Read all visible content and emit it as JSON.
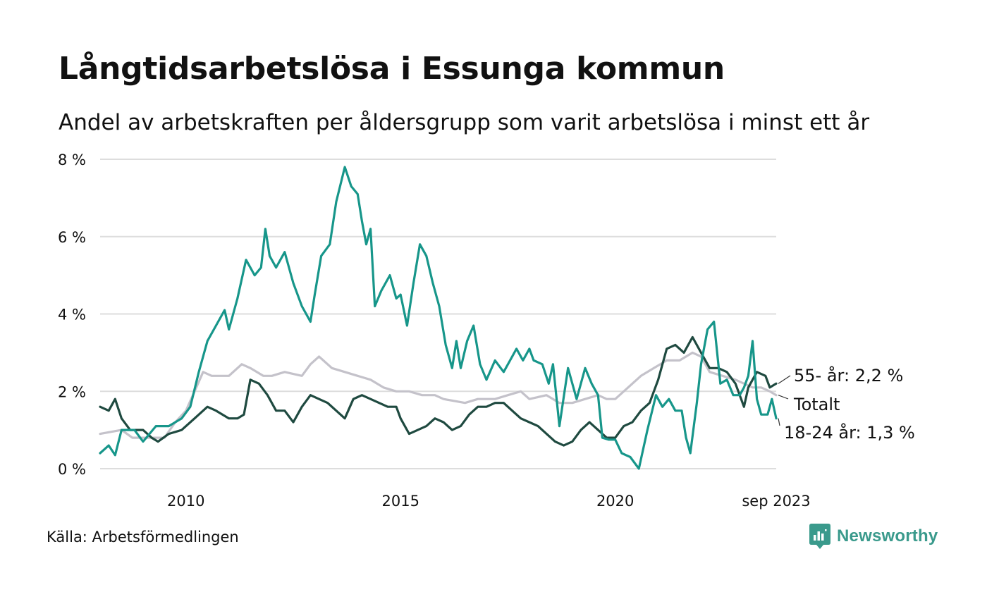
{
  "header": {
    "title": "Långtidsarbetslösa i Essunga kommun",
    "subtitle": "Andel av arbetskraften per åldersgrupp som varit arbetslösa i minst ett år"
  },
  "footer": {
    "source": "Källa: Arbetsförmedlingen",
    "brand": "Newsworthy"
  },
  "colors": {
    "age_18_24": "#17968a",
    "age_55": "#1f4a40",
    "total": "#c4c2ca",
    "grid": "#dddddd"
  },
  "chart_data": {
    "type": "line",
    "title": "Långtidsarbetslösa i Essunga kommun",
    "ylabel": "",
    "xlabel": "",
    "ylim": [
      0,
      8
    ],
    "y_ticks": [
      "0 %",
      "2 %",
      "4 %",
      "6 %",
      "8 %"
    ],
    "x_range": [
      2008,
      2023.75
    ],
    "x_ticks": [
      {
        "x": 2010,
        "label": "2010"
      },
      {
        "x": 2015,
        "label": "2015"
      },
      {
        "x": 2020,
        "label": "2020"
      },
      {
        "x": 2023.75,
        "label": "sep 2023"
      }
    ],
    "grid": true,
    "series": [
      {
        "name": "Totalt",
        "end_label": "Totalt",
        "points": [
          [
            2008.0,
            0.9
          ],
          [
            2008.5,
            1.0
          ],
          [
            2008.75,
            0.8
          ],
          [
            2009.0,
            0.8
          ],
          [
            2009.5,
            0.8
          ],
          [
            2009.75,
            1.2
          ],
          [
            2010.0,
            1.5
          ],
          [
            2010.2,
            2.0
          ],
          [
            2010.4,
            2.5
          ],
          [
            2010.6,
            2.4
          ],
          [
            2011.0,
            2.4
          ],
          [
            2011.3,
            2.7
          ],
          [
            2011.5,
            2.6
          ],
          [
            2011.8,
            2.4
          ],
          [
            2012.0,
            2.4
          ],
          [
            2012.3,
            2.5
          ],
          [
            2012.7,
            2.4
          ],
          [
            2012.9,
            2.7
          ],
          [
            2013.1,
            2.9
          ],
          [
            2013.4,
            2.6
          ],
          [
            2013.7,
            2.5
          ],
          [
            2014.0,
            2.4
          ],
          [
            2014.3,
            2.3
          ],
          [
            2014.6,
            2.1
          ],
          [
            2014.9,
            2.0
          ],
          [
            2015.2,
            2.0
          ],
          [
            2015.5,
            1.9
          ],
          [
            2015.8,
            1.9
          ],
          [
            2016.0,
            1.8
          ],
          [
            2016.5,
            1.7
          ],
          [
            2016.8,
            1.8
          ],
          [
            2017.2,
            1.8
          ],
          [
            2017.5,
            1.9
          ],
          [
            2017.8,
            2.0
          ],
          [
            2018.0,
            1.8
          ],
          [
            2018.4,
            1.9
          ],
          [
            2018.7,
            1.7
          ],
          [
            2019.0,
            1.7
          ],
          [
            2019.3,
            1.8
          ],
          [
            2019.6,
            1.9
          ],
          [
            2019.8,
            1.8
          ],
          [
            2020.0,
            1.8
          ],
          [
            2020.3,
            2.1
          ],
          [
            2020.6,
            2.4
          ],
          [
            2020.9,
            2.6
          ],
          [
            2021.2,
            2.8
          ],
          [
            2021.5,
            2.8
          ],
          [
            2021.8,
            3.0
          ],
          [
            2022.0,
            2.9
          ],
          [
            2022.2,
            2.5
          ],
          [
            2022.5,
            2.4
          ],
          [
            2022.8,
            2.3
          ],
          [
            2023.0,
            2.2
          ],
          [
            2023.2,
            2.1
          ],
          [
            2023.4,
            2.1
          ],
          [
            2023.6,
            2.0
          ],
          [
            2023.75,
            1.9
          ]
        ]
      },
      {
        "name": "55- år",
        "end_label": "55- år: 2,2 %",
        "points": [
          [
            2008.0,
            1.6
          ],
          [
            2008.2,
            1.5
          ],
          [
            2008.35,
            1.8
          ],
          [
            2008.5,
            1.3
          ],
          [
            2008.7,
            1.0
          ],
          [
            2009.0,
            1.0
          ],
          [
            2009.2,
            0.8
          ],
          [
            2009.35,
            0.7
          ],
          [
            2009.6,
            0.9
          ],
          [
            2009.9,
            1.0
          ],
          [
            2010.2,
            1.3
          ],
          [
            2010.5,
            1.6
          ],
          [
            2010.7,
            1.5
          ],
          [
            2011.0,
            1.3
          ],
          [
            2011.2,
            1.3
          ],
          [
            2011.35,
            1.4
          ],
          [
            2011.5,
            2.3
          ],
          [
            2011.7,
            2.2
          ],
          [
            2011.9,
            1.9
          ],
          [
            2012.1,
            1.5
          ],
          [
            2012.3,
            1.5
          ],
          [
            2012.5,
            1.2
          ],
          [
            2012.7,
            1.6
          ],
          [
            2012.9,
            1.9
          ],
          [
            2013.1,
            1.8
          ],
          [
            2013.3,
            1.7
          ],
          [
            2013.5,
            1.5
          ],
          [
            2013.7,
            1.3
          ],
          [
            2013.9,
            1.8
          ],
          [
            2014.1,
            1.9
          ],
          [
            2014.3,
            1.8
          ],
          [
            2014.5,
            1.7
          ],
          [
            2014.7,
            1.6
          ],
          [
            2014.9,
            1.6
          ],
          [
            2015.0,
            1.3
          ],
          [
            2015.2,
            0.9
          ],
          [
            2015.4,
            1.0
          ],
          [
            2015.6,
            1.1
          ],
          [
            2015.8,
            1.3
          ],
          [
            2016.0,
            1.2
          ],
          [
            2016.2,
            1.0
          ],
          [
            2016.4,
            1.1
          ],
          [
            2016.6,
            1.4
          ],
          [
            2016.8,
            1.6
          ],
          [
            2017.0,
            1.6
          ],
          [
            2017.2,
            1.7
          ],
          [
            2017.4,
            1.7
          ],
          [
            2017.6,
            1.5
          ],
          [
            2017.8,
            1.3
          ],
          [
            2018.0,
            1.2
          ],
          [
            2018.2,
            1.1
          ],
          [
            2018.4,
            0.9
          ],
          [
            2018.6,
            0.7
          ],
          [
            2018.8,
            0.6
          ],
          [
            2019.0,
            0.7
          ],
          [
            2019.2,
            1.0
          ],
          [
            2019.4,
            1.2
          ],
          [
            2019.6,
            1.0
          ],
          [
            2019.8,
            0.8
          ],
          [
            2020.0,
            0.8
          ],
          [
            2020.2,
            1.1
          ],
          [
            2020.4,
            1.2
          ],
          [
            2020.6,
            1.5
          ],
          [
            2020.8,
            1.7
          ],
          [
            2021.0,
            2.3
          ],
          [
            2021.2,
            3.1
          ],
          [
            2021.4,
            3.2
          ],
          [
            2021.6,
            3.0
          ],
          [
            2021.8,
            3.4
          ],
          [
            2022.0,
            3.0
          ],
          [
            2022.2,
            2.6
          ],
          [
            2022.4,
            2.6
          ],
          [
            2022.6,
            2.5
          ],
          [
            2022.8,
            2.2
          ],
          [
            2023.0,
            1.6
          ],
          [
            2023.1,
            2.1
          ],
          [
            2023.3,
            2.5
          ],
          [
            2023.5,
            2.4
          ],
          [
            2023.6,
            2.1
          ],
          [
            2023.75,
            2.2
          ]
        ]
      },
      {
        "name": "18-24 år",
        "end_label": "18-24 år: 1,3 %",
        "points": [
          [
            2008.0,
            0.4
          ],
          [
            2008.2,
            0.6
          ],
          [
            2008.35,
            0.35
          ],
          [
            2008.5,
            1.0
          ],
          [
            2008.8,
            1.0
          ],
          [
            2009.0,
            0.7
          ],
          [
            2009.3,
            1.1
          ],
          [
            2009.6,
            1.1
          ],
          [
            2009.9,
            1.3
          ],
          [
            2010.1,
            1.6
          ],
          [
            2010.3,
            2.5
          ],
          [
            2010.5,
            3.3
          ],
          [
            2010.7,
            3.7
          ],
          [
            2010.9,
            4.1
          ],
          [
            2011.0,
            3.6
          ],
          [
            2011.2,
            4.4
          ],
          [
            2011.4,
            5.4
          ],
          [
            2011.6,
            5.0
          ],
          [
            2011.75,
            5.2
          ],
          [
            2011.85,
            6.2
          ],
          [
            2011.95,
            5.5
          ],
          [
            2012.1,
            5.2
          ],
          [
            2012.3,
            5.6
          ],
          [
            2012.5,
            4.8
          ],
          [
            2012.7,
            4.2
          ],
          [
            2012.9,
            3.8
          ],
          [
            2013.0,
            4.5
          ],
          [
            2013.15,
            5.5
          ],
          [
            2013.35,
            5.8
          ],
          [
            2013.5,
            6.9
          ],
          [
            2013.7,
            7.8
          ],
          [
            2013.85,
            7.3
          ],
          [
            2014.0,
            7.1
          ],
          [
            2014.1,
            6.4
          ],
          [
            2014.2,
            5.8
          ],
          [
            2014.3,
            6.2
          ],
          [
            2014.4,
            4.2
          ],
          [
            2014.55,
            4.6
          ],
          [
            2014.75,
            5.0
          ],
          [
            2014.9,
            4.4
          ],
          [
            2015.0,
            4.5
          ],
          [
            2015.15,
            3.7
          ],
          [
            2015.3,
            4.8
          ],
          [
            2015.45,
            5.8
          ],
          [
            2015.6,
            5.5
          ],
          [
            2015.75,
            4.8
          ],
          [
            2015.9,
            4.2
          ],
          [
            2016.05,
            3.2
          ],
          [
            2016.2,
            2.6
          ],
          [
            2016.3,
            3.3
          ],
          [
            2016.4,
            2.6
          ],
          [
            2016.55,
            3.3
          ],
          [
            2016.7,
            3.7
          ],
          [
            2016.85,
            2.7
          ],
          [
            2017.0,
            2.3
          ],
          [
            2017.2,
            2.8
          ],
          [
            2017.4,
            2.5
          ],
          [
            2017.55,
            2.8
          ],
          [
            2017.7,
            3.1
          ],
          [
            2017.85,
            2.8
          ],
          [
            2018.0,
            3.1
          ],
          [
            2018.1,
            2.8
          ],
          [
            2018.3,
            2.7
          ],
          [
            2018.45,
            2.2
          ],
          [
            2018.55,
            2.7
          ],
          [
            2018.7,
            1.1
          ],
          [
            2018.9,
            2.6
          ],
          [
            2019.1,
            1.8
          ],
          [
            2019.3,
            2.6
          ],
          [
            2019.45,
            2.2
          ],
          [
            2019.6,
            1.9
          ],
          [
            2019.7,
            0.8
          ],
          [
            2019.85,
            0.75
          ],
          [
            2020.0,
            0.75
          ],
          [
            2020.15,
            0.4
          ],
          [
            2020.35,
            0.3
          ],
          [
            2020.55,
            0.0
          ],
          [
            2020.75,
            1.0
          ],
          [
            2020.95,
            1.9
          ],
          [
            2021.1,
            1.6
          ],
          [
            2021.25,
            1.8
          ],
          [
            2021.4,
            1.5
          ],
          [
            2021.55,
            1.5
          ],
          [
            2021.65,
            0.8
          ],
          [
            2021.75,
            0.4
          ],
          [
            2021.9,
            1.7
          ],
          [
            2022.0,
            2.7
          ],
          [
            2022.15,
            3.6
          ],
          [
            2022.3,
            3.8
          ],
          [
            2022.45,
            2.2
          ],
          [
            2022.6,
            2.3
          ],
          [
            2022.75,
            1.9
          ],
          [
            2022.9,
            1.9
          ],
          [
            2023.0,
            2.1
          ],
          [
            2023.1,
            2.4
          ],
          [
            2023.2,
            3.3
          ],
          [
            2023.3,
            1.8
          ],
          [
            2023.4,
            1.4
          ],
          [
            2023.55,
            1.4
          ],
          [
            2023.65,
            1.8
          ],
          [
            2023.75,
            1.3
          ]
        ]
      }
    ]
  }
}
